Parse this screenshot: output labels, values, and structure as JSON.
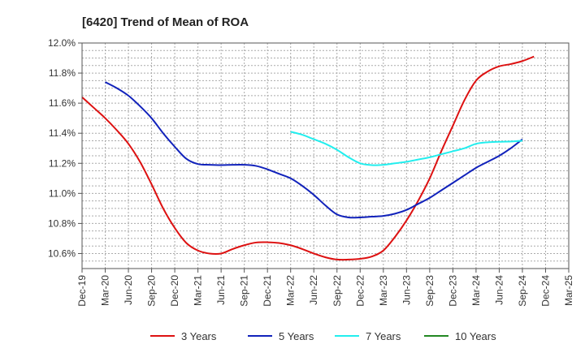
{
  "chart_data": {
    "type": "line",
    "title": "[6420]  Trend of Mean of ROA",
    "xlabel": "",
    "ylabel": "",
    "x_categories": [
      "Dec-19",
      "Mar-20",
      "Jun-20",
      "Sep-20",
      "Dec-20",
      "Mar-21",
      "Jun-21",
      "Sep-21",
      "Dec-21",
      "Mar-22",
      "Jun-22",
      "Sep-22",
      "Dec-22",
      "Mar-23",
      "Jun-23",
      "Sep-23",
      "Dec-23",
      "Mar-24",
      "Jun-24",
      "Sep-24",
      "Dec-24",
      "Mar-25"
    ],
    "y_ticks": [
      10.6,
      10.8,
      11.0,
      11.2,
      11.4,
      11.6,
      11.8,
      12.0
    ],
    "y_tick_labels": [
      "10.6%",
      "10.8%",
      "11.0%",
      "11.2%",
      "11.4%",
      "11.6%",
      "11.8%",
      "12.0%"
    ],
    "ylim": [
      10.5,
      12.0
    ],
    "grid": true,
    "legend_position": "bottom",
    "series": [
      {
        "name": "3 Years",
        "color": "#dd1111",
        "points": [
          [
            0,
            11.64
          ],
          [
            0.5,
            11.57
          ],
          [
            1,
            11.5
          ],
          [
            1.5,
            11.42
          ],
          [
            2,
            11.33
          ],
          [
            2.5,
            11.21
          ],
          [
            3,
            11.06
          ],
          [
            3.5,
            10.9
          ],
          [
            4,
            10.77
          ],
          [
            4.5,
            10.67
          ],
          [
            5,
            10.62
          ],
          [
            5.5,
            10.6
          ],
          [
            6,
            10.6
          ],
          [
            6.5,
            10.63
          ],
          [
            7,
            10.655
          ],
          [
            7.5,
            10.673
          ],
          [
            8,
            10.675
          ],
          [
            8.5,
            10.67
          ],
          [
            9,
            10.655
          ],
          [
            9.5,
            10.63
          ],
          [
            10,
            10.6
          ],
          [
            10.5,
            10.575
          ],
          [
            11,
            10.56
          ],
          [
            11.5,
            10.56
          ],
          [
            12,
            10.565
          ],
          [
            12.5,
            10.58
          ],
          [
            13,
            10.62
          ],
          [
            13.5,
            10.71
          ],
          [
            14,
            10.82
          ],
          [
            14.5,
            10.95
          ],
          [
            15,
            11.1
          ],
          [
            15.5,
            11.28
          ],
          [
            16,
            11.45
          ],
          [
            16.5,
            11.62
          ],
          [
            17,
            11.75
          ],
          [
            17.5,
            11.81
          ],
          [
            18,
            11.845
          ],
          [
            18.5,
            11.86
          ],
          [
            19,
            11.88
          ],
          [
            19.5,
            11.91
          ]
        ]
      },
      {
        "name": "5 Years",
        "color": "#1122bb",
        "points": [
          [
            1,
            11.74
          ],
          [
            1.5,
            11.7
          ],
          [
            2,
            11.65
          ],
          [
            2.5,
            11.58
          ],
          [
            3,
            11.5
          ],
          [
            3.5,
            11.4
          ],
          [
            4,
            11.31
          ],
          [
            4.5,
            11.23
          ],
          [
            5,
            11.195
          ],
          [
            5.5,
            11.19
          ],
          [
            6,
            11.188
          ],
          [
            6.5,
            11.19
          ],
          [
            7,
            11.19
          ],
          [
            7.5,
            11.183
          ],
          [
            8,
            11.16
          ],
          [
            8.5,
            11.13
          ],
          [
            9,
            11.1
          ],
          [
            9.5,
            11.05
          ],
          [
            10,
            10.99
          ],
          [
            10.5,
            10.92
          ],
          [
            11,
            10.86
          ],
          [
            11.5,
            10.84
          ],
          [
            12,
            10.84
          ],
          [
            12.5,
            10.845
          ],
          [
            13,
            10.85
          ],
          [
            13.5,
            10.865
          ],
          [
            14,
            10.89
          ],
          [
            14.5,
            10.93
          ],
          [
            15,
            10.97
          ],
          [
            15.5,
            11.02
          ],
          [
            16,
            11.07
          ],
          [
            16.5,
            11.12
          ],
          [
            17,
            11.17
          ],
          [
            17.5,
            11.21
          ],
          [
            18,
            11.25
          ],
          [
            18.5,
            11.3
          ],
          [
            19,
            11.36
          ]
        ]
      },
      {
        "name": "7 Years",
        "color": "#22eeee",
        "points": [
          [
            9,
            11.41
          ],
          [
            9.5,
            11.39
          ],
          [
            10,
            11.36
          ],
          [
            10.5,
            11.33
          ],
          [
            11,
            11.29
          ],
          [
            11.5,
            11.24
          ],
          [
            12,
            11.2
          ],
          [
            12.5,
            11.188
          ],
          [
            13,
            11.19
          ],
          [
            13.5,
            11.2
          ],
          [
            14,
            11.21
          ],
          [
            14.5,
            11.225
          ],
          [
            15,
            11.24
          ],
          [
            15.5,
            11.26
          ],
          [
            16,
            11.28
          ],
          [
            16.5,
            11.3
          ],
          [
            17,
            11.33
          ],
          [
            17.5,
            11.34
          ],
          [
            18,
            11.343
          ],
          [
            18.5,
            11.345
          ],
          [
            19,
            11.35
          ]
        ]
      },
      {
        "name": "10 Years",
        "color": "#228822",
        "points": []
      }
    ]
  }
}
